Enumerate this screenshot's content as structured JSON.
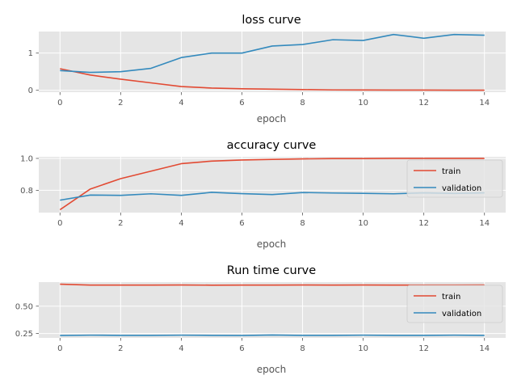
{
  "chart_data": [
    {
      "type": "line",
      "title": "loss curve",
      "xlabel": "epoch",
      "ylabel": "",
      "xlim": [
        -0.7,
        14.7
      ],
      "ylim": [
        -0.05,
        1.58
      ],
      "xticks": [
        0,
        2,
        4,
        6,
        8,
        10,
        12,
        14
      ],
      "yticks": [
        0,
        1
      ],
      "ytick_labels": [
        "0",
        "1"
      ],
      "grid": true,
      "legend": null,
      "x": [
        0,
        1,
        2,
        3,
        4,
        5,
        6,
        7,
        8,
        9,
        10,
        11,
        12,
        13,
        14
      ],
      "series": [
        {
          "color": "#E24A33",
          "values": [
            0.58,
            0.41,
            0.3,
            0.2,
            0.1,
            0.06,
            0.04,
            0.03,
            0.02,
            0.01,
            0.008,
            0.006,
            0.005,
            0.004,
            0.003
          ]
        },
        {
          "color": "#348ABD",
          "values": [
            0.53,
            0.48,
            0.5,
            0.59,
            0.88,
            1.0,
            1.0,
            1.19,
            1.23,
            1.36,
            1.34,
            1.5,
            1.4,
            1.5,
            1.48
          ]
        }
      ]
    },
    {
      "type": "line",
      "title": "accuracy curve",
      "xlabel": "epoch",
      "ylabel": "",
      "xlim": [
        -0.7,
        14.7
      ],
      "ylim": [
        0.66,
        1.01
      ],
      "xticks": [
        0,
        2,
        4,
        6,
        8,
        10,
        12,
        14
      ],
      "yticks": [
        0.8,
        1.0
      ],
      "ytick_labels": [
        "0.8",
        "1.0"
      ],
      "grid": true,
      "legend": "top-right",
      "x": [
        0,
        1,
        2,
        3,
        4,
        5,
        6,
        7,
        8,
        9,
        10,
        11,
        12,
        13,
        14
      ],
      "series": [
        {
          "name": "train",
          "color": "#E24A33",
          "values": [
            0.678,
            0.808,
            0.873,
            0.92,
            0.967,
            0.983,
            0.99,
            0.994,
            0.997,
            0.999,
            0.999,
            1.0,
            1.0,
            1.0,
            1.0
          ]
        },
        {
          "name": "validation",
          "color": "#348ABD",
          "values": [
            0.738,
            0.77,
            0.768,
            0.778,
            0.768,
            0.787,
            0.779,
            0.773,
            0.786,
            0.783,
            0.781,
            0.778,
            0.784,
            0.78,
            0.784
          ]
        }
      ]
    },
    {
      "type": "line",
      "title": "Run time curve",
      "xlabel": "epoch",
      "ylabel": "",
      "xlim": [
        -0.7,
        14.7
      ],
      "ylim": [
        0.21,
        0.72
      ],
      "xticks": [
        0,
        2,
        4,
        6,
        8,
        10,
        12,
        14
      ],
      "yticks": [
        0.25,
        0.5
      ],
      "ytick_labels": [
        "0.25",
        "0.50"
      ],
      "grid": true,
      "legend": "top-right",
      "x": [
        0,
        1,
        2,
        3,
        4,
        5,
        6,
        7,
        8,
        9,
        10,
        11,
        12,
        13,
        14
      ],
      "series": [
        {
          "name": "train",
          "color": "#E24A33",
          "values": [
            0.701,
            0.693,
            0.693,
            0.693,
            0.694,
            0.692,
            0.693,
            0.693,
            0.694,
            0.693,
            0.694,
            0.693,
            0.693,
            0.693,
            0.694
          ]
        },
        {
          "name": "validation",
          "color": "#348ABD",
          "values": [
            0.232,
            0.235,
            0.233,
            0.233,
            0.235,
            0.233,
            0.232,
            0.236,
            0.233,
            0.233,
            0.235,
            0.233,
            0.233,
            0.235,
            0.233
          ]
        }
      ]
    }
  ]
}
